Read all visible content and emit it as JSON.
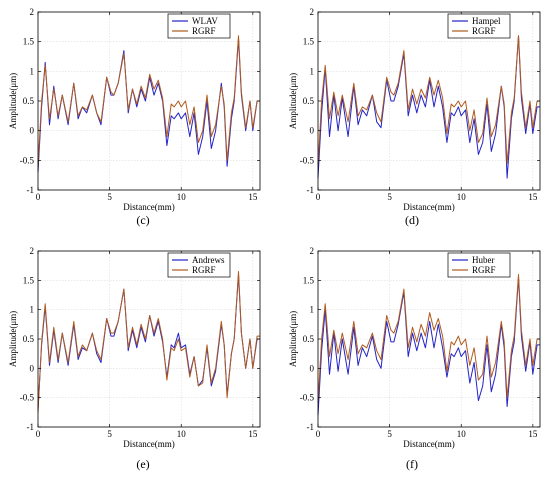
{
  "chart_data": [
    {
      "type": "line",
      "panel": "c",
      "caption": "(c)",
      "xlabel": "Distance(mm)",
      "ylabel": "Amplitude(μm)",
      "xlim": [
        0,
        15.5
      ],
      "ylim": [
        -1,
        2
      ],
      "xticks": [
        0,
        5,
        10,
        15
      ],
      "yticks": [
        -1,
        -0.5,
        0,
        0.5,
        1,
        1.5,
        2
      ],
      "grid": true,
      "legend_position": "top-right",
      "series": [
        {
          "name": "WLAV",
          "color": "#2323c8",
          "x": [
            0,
            0.25,
            0.5,
            0.8,
            1.1,
            1.4,
            1.7,
            2.1,
            2.5,
            2.8,
            3.1,
            3.4,
            3.8,
            4.1,
            4.4,
            4.8,
            5.1,
            5.3,
            5.6,
            6.0,
            6.3,
            6.6,
            6.9,
            7.2,
            7.5,
            7.8,
            8.1,
            8.4,
            8.7,
            9.0,
            9.3,
            9.5,
            9.8,
            10.0,
            10.3,
            10.6,
            10.9,
            11.2,
            11.5,
            11.8,
            12.1,
            12.4,
            12.8,
            13.0,
            13.2,
            13.5,
            13.7,
            14.0,
            14.2,
            14.5,
            14.8,
            15.0,
            15.3,
            15.5
          ],
          "y": [
            -0.7,
            0.4,
            1.15,
            0.1,
            0.75,
            0.2,
            0.6,
            0.1,
            0.8,
            0.2,
            0.4,
            0.3,
            0.6,
            0.3,
            0.1,
            0.9,
            0.6,
            0.6,
            0.8,
            1.35,
            0.3,
            0.7,
            0.4,
            0.7,
            0.5,
            0.9,
            0.6,
            0.8,
            0.5,
            -0.25,
            0.25,
            0.2,
            0.3,
            0.2,
            0.3,
            -0.1,
            0.3,
            -0.4,
            -0.1,
            0.5,
            -0.3,
            0.0,
            0.8,
            0.4,
            -0.6,
            0.2,
            0.5,
            1.55,
            0.6,
            0.0,
            0.5,
            0.0,
            0.5,
            0.5
          ]
        },
        {
          "name": "RGRF",
          "color": "#b05a1e",
          "x": [
            0,
            0.25,
            0.5,
            0.8,
            1.1,
            1.4,
            1.7,
            2.1,
            2.5,
            2.8,
            3.1,
            3.4,
            3.8,
            4.1,
            4.4,
            4.8,
            5.1,
            5.3,
            5.6,
            6.0,
            6.3,
            6.6,
            6.9,
            7.2,
            7.5,
            7.8,
            8.1,
            8.4,
            8.7,
            9.0,
            9.3,
            9.5,
            9.8,
            10.0,
            10.3,
            10.6,
            10.9,
            11.2,
            11.5,
            11.8,
            12.1,
            12.4,
            12.8,
            13.0,
            13.2,
            13.5,
            13.7,
            14.0,
            14.2,
            14.5,
            14.8,
            15.0,
            15.3,
            15.5
          ],
          "y": [
            -0.6,
            0.5,
            1.1,
            0.2,
            0.7,
            0.25,
            0.6,
            0.15,
            0.8,
            0.25,
            0.4,
            0.35,
            0.6,
            0.3,
            0.15,
            0.9,
            0.65,
            0.6,
            0.8,
            1.3,
            0.35,
            0.7,
            0.45,
            0.75,
            0.55,
            0.95,
            0.7,
            0.85,
            0.55,
            -0.1,
            0.45,
            0.4,
            0.5,
            0.4,
            0.5,
            0.1,
            0.4,
            -0.2,
            0.0,
            0.6,
            -0.1,
            0.1,
            0.75,
            0.45,
            -0.5,
            0.3,
            0.55,
            1.6,
            0.65,
            0.05,
            0.5,
            0.05,
            0.5,
            0.5
          ]
        }
      ]
    },
    {
      "type": "line",
      "panel": "d",
      "caption": "(d)",
      "xlabel": "Distance(mm)",
      "ylabel": "Amplitude(μm)",
      "xlim": [
        0,
        15.5
      ],
      "ylim": [
        -1,
        2
      ],
      "xticks": [
        0,
        5,
        10,
        15
      ],
      "yticks": [
        -1,
        -0.5,
        0,
        0.5,
        1,
        1.5,
        2
      ],
      "grid": true,
      "legend_position": "top-right",
      "series": [
        {
          "name": "Hampel",
          "color": "#2323c8",
          "x": [
            0,
            0.25,
            0.5,
            0.8,
            1.1,
            1.4,
            1.7,
            2.1,
            2.5,
            2.8,
            3.1,
            3.4,
            3.8,
            4.1,
            4.4,
            4.8,
            5.1,
            5.3,
            5.6,
            6.0,
            6.3,
            6.6,
            6.9,
            7.2,
            7.5,
            7.8,
            8.1,
            8.4,
            8.7,
            9.0,
            9.3,
            9.5,
            9.8,
            10.0,
            10.3,
            10.6,
            10.9,
            11.2,
            11.5,
            11.8,
            12.1,
            12.4,
            12.8,
            13.0,
            13.2,
            13.5,
            13.7,
            14.0,
            14.2,
            14.5,
            14.8,
            15.0,
            15.3,
            15.5
          ],
          "y": [
            -0.8,
            0.3,
            1.05,
            -0.1,
            0.6,
            0.0,
            0.55,
            -0.1,
            0.75,
            0.1,
            0.35,
            0.25,
            0.6,
            0.15,
            0.05,
            0.85,
            0.5,
            0.5,
            0.75,
            1.3,
            0.25,
            0.6,
            0.3,
            0.6,
            0.4,
            0.85,
            0.4,
            0.75,
            0.4,
            -0.2,
            0.3,
            0.25,
            0.4,
            0.25,
            0.35,
            -0.2,
            0.2,
            -0.4,
            -0.2,
            0.45,
            -0.35,
            -0.05,
            0.75,
            0.4,
            -0.8,
            0.2,
            0.5,
            1.6,
            0.55,
            -0.05,
            0.45,
            -0.05,
            0.4,
            0.4
          ]
        },
        {
          "name": "RGRF",
          "color": "#b05a1e",
          "x": [
            0,
            0.25,
            0.5,
            0.8,
            1.1,
            1.4,
            1.7,
            2.1,
            2.5,
            2.8,
            3.1,
            3.4,
            3.8,
            4.1,
            4.4,
            4.8,
            5.1,
            5.3,
            5.6,
            6.0,
            6.3,
            6.6,
            6.9,
            7.2,
            7.5,
            7.8,
            8.1,
            8.4,
            8.7,
            9.0,
            9.3,
            9.5,
            9.8,
            10.0,
            10.3,
            10.6,
            10.9,
            11.2,
            11.5,
            11.8,
            12.1,
            12.4,
            12.8,
            13.0,
            13.2,
            13.5,
            13.7,
            14.0,
            14.2,
            14.5,
            14.8,
            15.0,
            15.3,
            15.5
          ],
          "y": [
            -0.6,
            0.5,
            1.1,
            0.2,
            0.65,
            0.25,
            0.6,
            0.15,
            0.8,
            0.25,
            0.4,
            0.35,
            0.6,
            0.3,
            0.15,
            0.9,
            0.65,
            0.6,
            0.8,
            1.35,
            0.35,
            0.7,
            0.45,
            0.7,
            0.55,
            0.9,
            0.6,
            0.85,
            0.55,
            -0.05,
            0.45,
            0.4,
            0.5,
            0.4,
            0.5,
            0.0,
            0.35,
            -0.2,
            -0.05,
            0.55,
            -0.1,
            0.1,
            0.75,
            0.45,
            -0.55,
            0.3,
            0.55,
            1.6,
            0.65,
            0.05,
            0.5,
            0.05,
            0.5,
            0.5
          ]
        }
      ]
    },
    {
      "type": "line",
      "panel": "e",
      "caption": "(e)",
      "xlabel": "Distance(mm)",
      "ylabel": "Amplitude(μm)",
      "xlim": [
        0,
        15.5
      ],
      "ylim": [
        -1,
        2
      ],
      "xticks": [
        0,
        5,
        10,
        15
      ],
      "yticks": [
        -1,
        -0.5,
        0,
        0.5,
        1,
        1.5,
        2
      ],
      "grid": true,
      "legend_position": "top-right",
      "series": [
        {
          "name": "Andrews",
          "color": "#2323c8",
          "x": [
            0,
            0.25,
            0.5,
            0.8,
            1.1,
            1.4,
            1.7,
            2.1,
            2.5,
            2.8,
            3.1,
            3.4,
            3.8,
            4.1,
            4.4,
            4.8,
            5.1,
            5.3,
            5.6,
            6.0,
            6.3,
            6.6,
            6.9,
            7.2,
            7.5,
            7.8,
            8.1,
            8.4,
            8.7,
            9.0,
            9.3,
            9.5,
            9.8,
            10.0,
            10.3,
            10.6,
            10.9,
            11.2,
            11.5,
            11.8,
            12.1,
            12.4,
            12.8,
            13.0,
            13.2,
            13.5,
            13.7,
            14.0,
            14.2,
            14.5,
            14.8,
            15.0,
            15.3,
            15.5
          ],
          "y": [
            -0.7,
            0.4,
            1.05,
            0.05,
            0.65,
            0.1,
            0.6,
            0.05,
            0.75,
            0.15,
            0.35,
            0.3,
            0.6,
            0.25,
            0.1,
            0.85,
            0.55,
            0.55,
            0.8,
            1.35,
            0.3,
            0.65,
            0.35,
            0.7,
            0.45,
            0.9,
            0.55,
            0.8,
            0.45,
            -0.15,
            0.4,
            0.35,
            0.6,
            0.35,
            0.4,
            -0.1,
            0.2,
            -0.3,
            -0.2,
            0.35,
            -0.3,
            -0.05,
            0.75,
            0.4,
            -0.45,
            0.25,
            0.5,
            1.6,
            0.6,
            0.0,
            0.5,
            0.0,
            0.5,
            0.5
          ]
        },
        {
          "name": "RGRF",
          "color": "#b05a1e",
          "x": [
            0,
            0.25,
            0.5,
            0.8,
            1.1,
            1.4,
            1.7,
            2.1,
            2.5,
            2.8,
            3.1,
            3.4,
            3.8,
            4.1,
            4.4,
            4.8,
            5.1,
            5.3,
            5.6,
            6.0,
            6.3,
            6.6,
            6.9,
            7.2,
            7.5,
            7.8,
            8.1,
            8.4,
            8.7,
            9.0,
            9.3,
            9.5,
            9.8,
            10.0,
            10.3,
            10.6,
            10.9,
            11.2,
            11.5,
            11.8,
            12.1,
            12.4,
            12.8,
            13.0,
            13.2,
            13.5,
            13.7,
            14.0,
            14.2,
            14.5,
            14.8,
            15.0,
            15.3,
            15.5
          ],
          "y": [
            -0.75,
            0.45,
            1.1,
            0.1,
            0.7,
            0.15,
            0.6,
            0.1,
            0.8,
            0.2,
            0.4,
            0.3,
            0.6,
            0.3,
            0.15,
            0.85,
            0.6,
            0.6,
            0.8,
            1.35,
            0.35,
            0.7,
            0.4,
            0.75,
            0.5,
            0.9,
            0.6,
            0.85,
            0.5,
            -0.2,
            0.35,
            0.3,
            0.5,
            0.3,
            0.35,
            -0.15,
            0.2,
            -0.3,
            -0.25,
            0.4,
            -0.25,
            0.0,
            0.8,
            0.4,
            -0.5,
            0.25,
            0.5,
            1.65,
            0.6,
            0.0,
            0.5,
            0.0,
            0.55,
            0.55
          ]
        }
      ]
    },
    {
      "type": "line",
      "panel": "f",
      "caption": "(f)",
      "xlabel": "Distance(mm)",
      "ylabel": "Amplitude(μm)",
      "xlim": [
        0,
        15.5
      ],
      "ylim": [
        -1,
        2
      ],
      "xticks": [
        0,
        5,
        10,
        15
      ],
      "yticks": [
        -1,
        -0.5,
        0,
        0.5,
        1,
        1.5,
        2
      ],
      "grid": true,
      "legend_position": "top-right",
      "series": [
        {
          "name": "Huber",
          "color": "#2323c8",
          "x": [
            0,
            0.25,
            0.5,
            0.8,
            1.1,
            1.4,
            1.7,
            2.1,
            2.5,
            2.8,
            3.1,
            3.4,
            3.8,
            4.1,
            4.4,
            4.8,
            5.1,
            5.3,
            5.6,
            6.0,
            6.3,
            6.6,
            6.9,
            7.2,
            7.5,
            7.8,
            8.1,
            8.4,
            8.7,
            9.0,
            9.3,
            9.5,
            9.8,
            10.0,
            10.3,
            10.6,
            10.9,
            11.2,
            11.5,
            11.8,
            12.1,
            12.4,
            12.8,
            13.0,
            13.2,
            13.5,
            13.7,
            14.0,
            14.2,
            14.5,
            14.8,
            15.0,
            15.3,
            15.5
          ],
          "y": [
            -0.8,
            0.3,
            1.0,
            -0.1,
            0.6,
            -0.05,
            0.5,
            -0.1,
            0.7,
            0.05,
            0.35,
            0.2,
            0.55,
            0.15,
            0.0,
            0.8,
            0.45,
            0.45,
            0.75,
            1.3,
            0.2,
            0.6,
            0.3,
            0.6,
            0.35,
            0.8,
            0.35,
            0.75,
            0.35,
            -0.15,
            0.25,
            0.2,
            0.35,
            0.2,
            0.3,
            -0.25,
            0.1,
            -0.55,
            -0.3,
            0.4,
            -0.4,
            -0.1,
            0.75,
            0.35,
            -0.65,
            0.2,
            0.45,
            1.55,
            0.55,
            -0.05,
            0.45,
            -0.1,
            0.4,
            0.4
          ]
        },
        {
          "name": "RGRF",
          "color": "#b05a1e",
          "x": [
            0,
            0.25,
            0.5,
            0.8,
            1.1,
            1.4,
            1.7,
            2.1,
            2.5,
            2.8,
            3.1,
            3.4,
            3.8,
            4.1,
            4.4,
            4.8,
            5.1,
            5.3,
            5.6,
            6.0,
            6.3,
            6.6,
            6.9,
            7.2,
            7.5,
            7.8,
            8.1,
            8.4,
            8.7,
            9.0,
            9.3,
            9.5,
            9.8,
            10.0,
            10.3,
            10.6,
            10.9,
            11.2,
            11.5,
            11.8,
            12.1,
            12.4,
            12.8,
            13.0,
            13.2,
            13.5,
            13.7,
            14.0,
            14.2,
            14.5,
            14.8,
            15.0,
            15.3,
            15.5
          ],
          "y": [
            -0.6,
            0.5,
            1.1,
            0.2,
            0.65,
            0.25,
            0.6,
            0.15,
            0.8,
            0.25,
            0.4,
            0.35,
            0.6,
            0.3,
            0.15,
            0.9,
            0.65,
            0.6,
            0.8,
            1.35,
            0.35,
            0.7,
            0.45,
            0.75,
            0.55,
            0.95,
            0.65,
            0.85,
            0.55,
            -0.05,
            0.45,
            0.4,
            0.55,
            0.4,
            0.5,
            0.05,
            0.35,
            -0.2,
            -0.1,
            0.55,
            -0.15,
            0.1,
            0.8,
            0.45,
            -0.5,
            0.3,
            0.55,
            1.6,
            0.65,
            0.05,
            0.5,
            0.05,
            0.5,
            0.5
          ]
        }
      ]
    }
  ]
}
